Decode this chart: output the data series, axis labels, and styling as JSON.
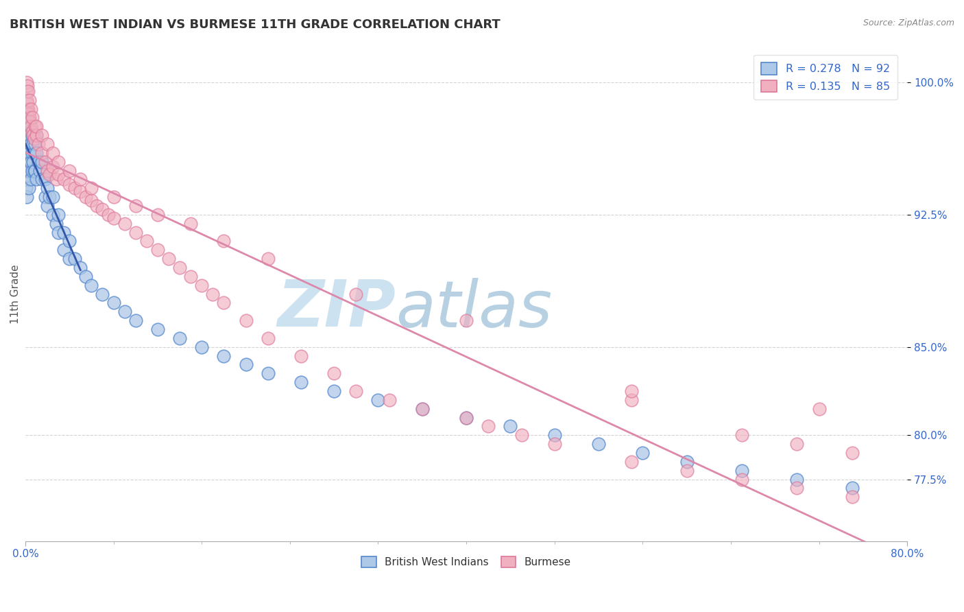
{
  "title": "BRITISH WEST INDIAN VS BURMESE 11TH GRADE CORRELATION CHART",
  "source_text": "Source: ZipAtlas.com",
  "series1_label": "British West Indians",
  "series2_label": "Burmese",
  "series1_R": 0.278,
  "series1_N": 92,
  "series2_R": 0.135,
  "series2_N": 85,
  "legend_R_color": "#3366cc",
  "background_color": "#ffffff",
  "grid_color": "#c8c8c8",
  "title_color": "#333333",
  "axis_label_color": "#3366cc",
  "ylabel_label": "11th Grade",
  "xmin": 0.0,
  "xmax": 80.0,
  "ymin": 74.0,
  "ymax": 102.0,
  "yticks": [
    77.5,
    80.0,
    85.0,
    92.5,
    100.0
  ],
  "series1_color": "#aec8e8",
  "series1_edge": "#5588cc",
  "series2_color": "#f0b0c0",
  "series2_edge": "#dd7799",
  "trendline1_color": "#3355aa",
  "trendline2_color": "#dd88aa",
  "watermark_zip": "#c0d8f0",
  "watermark_atlas": "#a0b8d0",
  "series1_x": [
    0.05,
    0.05,
    0.05,
    0.1,
    0.1,
    0.1,
    0.1,
    0.1,
    0.15,
    0.15,
    0.15,
    0.15,
    0.2,
    0.2,
    0.2,
    0.2,
    0.2,
    0.25,
    0.25,
    0.25,
    0.3,
    0.3,
    0.3,
    0.3,
    0.3,
    0.35,
    0.35,
    0.35,
    0.4,
    0.4,
    0.4,
    0.5,
    0.5,
    0.5,
    0.5,
    0.6,
    0.6,
    0.6,
    0.7,
    0.7,
    0.8,
    0.8,
    0.9,
    0.9,
    1.0,
    1.0,
    1.0,
    1.2,
    1.3,
    1.5,
    1.5,
    1.8,
    1.8,
    2.0,
    2.0,
    2.2,
    2.5,
    2.5,
    2.8,
    3.0,
    3.0,
    3.5,
    3.5,
    4.0,
    4.0,
    4.5,
    5.0,
    5.5,
    6.0,
    7.0,
    8.0,
    9.0,
    10.0,
    12.0,
    14.0,
    16.0,
    18.0,
    20.0,
    22.0,
    25.0,
    28.0,
    32.0,
    36.0,
    40.0,
    44.0,
    48.0,
    52.0,
    56.0,
    60.0,
    65.0,
    70.0,
    75.0
  ],
  "series1_y": [
    96.0,
    95.0,
    94.0,
    97.5,
    96.5,
    95.5,
    94.5,
    93.5,
    98.0,
    97.0,
    96.0,
    95.0,
    98.5,
    97.5,
    96.5,
    95.5,
    94.5,
    97.0,
    96.0,
    95.0,
    98.0,
    97.0,
    96.0,
    95.0,
    94.0,
    97.5,
    96.5,
    95.5,
    97.0,
    96.0,
    95.0,
    97.5,
    96.5,
    95.5,
    94.5,
    97.0,
    96.0,
    95.0,
    96.5,
    95.5,
    96.0,
    95.0,
    96.5,
    95.0,
    97.0,
    96.0,
    94.5,
    95.5,
    95.0,
    95.5,
    94.5,
    94.5,
    93.5,
    94.0,
    93.0,
    93.5,
    93.5,
    92.5,
    92.0,
    92.5,
    91.5,
    91.5,
    90.5,
    91.0,
    90.0,
    90.0,
    89.5,
    89.0,
    88.5,
    88.0,
    87.5,
    87.0,
    86.5,
    86.0,
    85.5,
    85.0,
    84.5,
    84.0,
    83.5,
    83.0,
    82.5,
    82.0,
    81.5,
    81.0,
    80.5,
    80.0,
    79.5,
    79.0,
    78.5,
    78.0,
    77.5,
    77.0
  ],
  "series2_x": [
    0.1,
    0.15,
    0.2,
    0.25,
    0.3,
    0.35,
    0.4,
    0.5,
    0.6,
    0.7,
    0.8,
    0.9,
    1.0,
    1.2,
    1.5,
    1.8,
    2.0,
    2.2,
    2.5,
    2.8,
    3.0,
    3.5,
    4.0,
    4.5,
    5.0,
    5.5,
    6.0,
    6.5,
    7.0,
    7.5,
    8.0,
    9.0,
    10.0,
    11.0,
    12.0,
    13.0,
    14.0,
    15.0,
    16.0,
    17.0,
    18.0,
    20.0,
    22.0,
    25.0,
    28.0,
    30.0,
    33.0,
    36.0,
    40.0,
    42.0,
    45.0,
    48.0,
    55.0,
    60.0,
    65.0,
    70.0,
    75.0,
    0.1,
    0.2,
    0.25,
    0.4,
    0.5,
    0.6,
    1.0,
    1.5,
    2.0,
    2.5,
    3.0,
    4.0,
    5.0,
    6.0,
    8.0,
    10.0,
    12.0,
    15.0,
    18.0,
    22.0,
    30.0,
    40.0,
    55.0,
    70.0,
    55.0,
    65.0,
    75.0,
    72.0
  ],
  "series2_y": [
    99.5,
    99.0,
    98.8,
    98.5,
    98.2,
    98.0,
    97.8,
    97.5,
    97.2,
    97.0,
    96.8,
    97.5,
    97.0,
    96.5,
    96.0,
    95.5,
    95.0,
    94.8,
    95.2,
    94.5,
    94.8,
    94.5,
    94.2,
    94.0,
    93.8,
    93.5,
    93.3,
    93.0,
    92.8,
    92.5,
    92.3,
    92.0,
    91.5,
    91.0,
    90.5,
    90.0,
    89.5,
    89.0,
    88.5,
    88.0,
    87.5,
    86.5,
    85.5,
    84.5,
    83.5,
    82.5,
    82.0,
    81.5,
    81.0,
    80.5,
    80.0,
    79.5,
    78.5,
    78.0,
    77.5,
    77.0,
    76.5,
    100.0,
    99.8,
    99.5,
    99.0,
    98.5,
    98.0,
    97.5,
    97.0,
    96.5,
    96.0,
    95.5,
    95.0,
    94.5,
    94.0,
    93.5,
    93.0,
    92.5,
    92.0,
    91.0,
    90.0,
    88.0,
    86.5,
    82.0,
    79.5,
    82.5,
    80.0,
    79.0,
    81.5
  ]
}
